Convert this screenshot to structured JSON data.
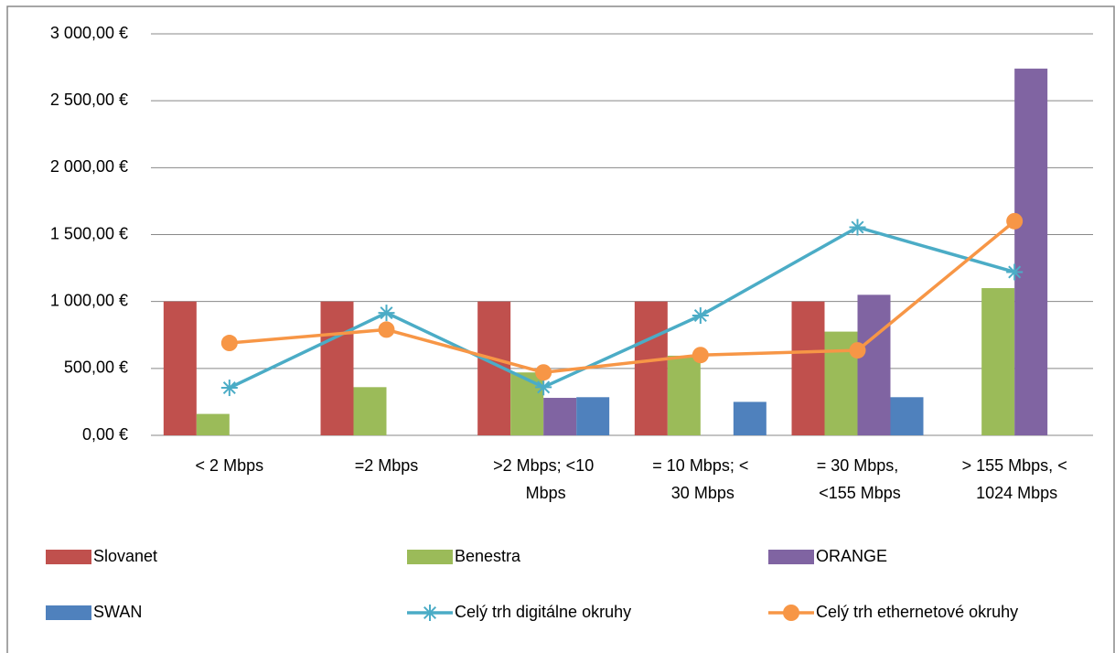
{
  "chart_data": {
    "type": "bar",
    "categories": [
      "< 2 Mbps",
      "=2 Mbps",
      ">2 Mbps; <10 Mbps",
      "= 10 Mbps; < 30 Mbps",
      "= 30 Mbps, <155 Mbps",
      "> 155 Mbps, < 1024 Mbps"
    ],
    "series": [
      {
        "name": "Slovanet",
        "type": "bar",
        "color": "#c0504d",
        "values": [
          1000,
          1000,
          1000,
          1000,
          1000,
          null
        ]
      },
      {
        "name": "Benestra",
        "type": "bar",
        "color": "#9bbb59",
        "values": [
          160,
          360,
          470,
          595,
          775,
          1100
        ]
      },
      {
        "name": "ORANGE",
        "type": "bar",
        "color": "#8064a2",
        "values": [
          null,
          null,
          280,
          null,
          1050,
          2740
        ]
      },
      {
        "name": "SWAN",
        "type": "bar",
        "color": "#4f81bd",
        "values": [
          null,
          null,
          285,
          250,
          285,
          null
        ]
      },
      {
        "name": "Celý trh digitálne okruhy",
        "type": "line",
        "marker": "star",
        "color": "#4bacc6",
        "values": [
          355,
          915,
          360,
          895,
          1555,
          1220
        ]
      },
      {
        "name": "Celý trh ethernetové okruhy",
        "type": "line",
        "marker": "circle",
        "color": "#f79646",
        "values": [
          690,
          790,
          470,
          600,
          635,
          1600
        ]
      }
    ],
    "ylim": [
      0,
      3000
    ],
    "yticks": [
      {
        "value": 0,
        "label": "0,00 €"
      },
      {
        "value": 500,
        "label": "500,00 €"
      },
      {
        "value": 1000,
        "label": "1 000,00 €"
      },
      {
        "value": 1500,
        "label": "1 500,00 €"
      },
      {
        "value": 2000,
        "label": "2 000,00 €"
      },
      {
        "value": 2500,
        "label": "2 500,00 €"
      },
      {
        "value": 3000,
        "label": "3 000,00 €"
      }
    ],
    "grid": true,
    "legend": "bottom"
  }
}
